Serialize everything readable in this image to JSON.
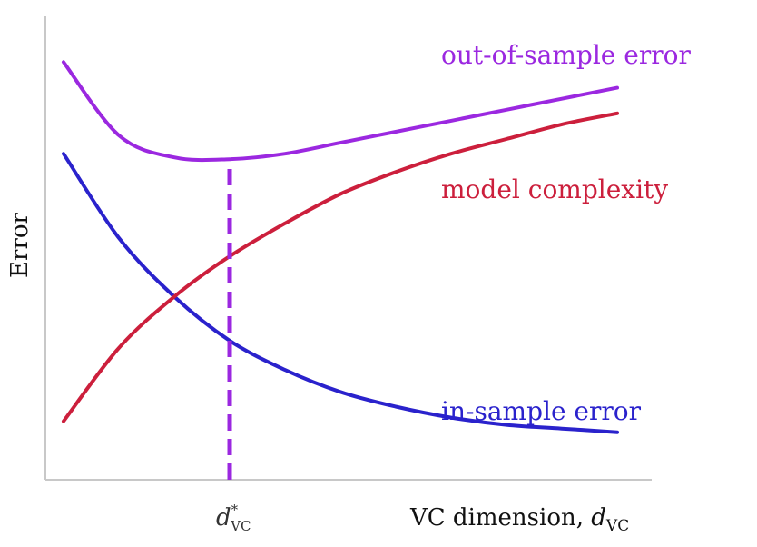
{
  "chart_data": {
    "type": "line",
    "title": "",
    "xlabel": "VC dimension, d_VC",
    "ylabel": "Error",
    "marker_label": "d*_VC",
    "grid": false,
    "legend": "none (inline curve labels)",
    "x": [
      0,
      1,
      2,
      3,
      4,
      5,
      6,
      7,
      8,
      9,
      10
    ],
    "series": [
      {
        "name": "in-sample error",
        "color": "#2a22cc",
        "values": [
          8.5,
          6.2,
          4.6,
          3.4,
          2.6,
          2.0,
          1.6,
          1.3,
          1.1,
          1.0,
          0.9
        ]
      },
      {
        "name": "model complexity",
        "color": "#cc1f3c",
        "values": [
          1.2,
          3.2,
          4.6,
          5.7,
          6.6,
          7.4,
          8.0,
          8.5,
          8.9,
          9.3,
          9.6
        ]
      },
      {
        "name": "out-of-sample error",
        "color": "#9b28e0",
        "values": [
          11.0,
          9.0,
          8.4,
          8.35,
          8.5,
          8.8,
          9.1,
          9.4,
          9.7,
          10.0,
          10.3
        ]
      }
    ],
    "marker": {
      "x": 3.0,
      "style": "dashed",
      "color": "#9b28e0"
    },
    "xlim": [
      0,
      10
    ],
    "ylim": [
      0,
      12
    ]
  }
}
